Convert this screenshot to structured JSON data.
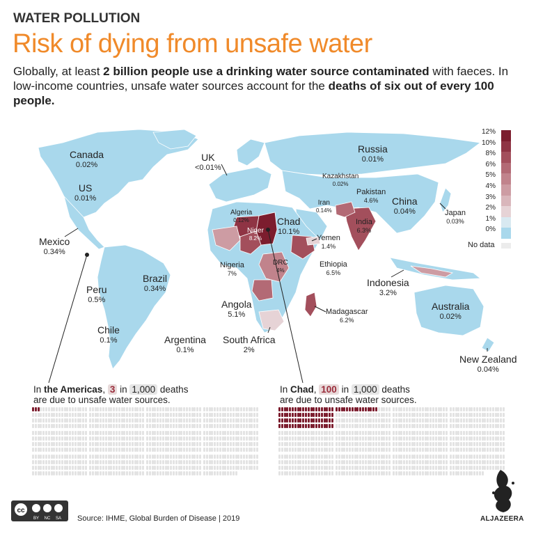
{
  "header": {
    "kicker": "WATER POLLUTION",
    "title": "Risk of dying from unsafe water",
    "subtitle_p1": "Globally, at least ",
    "subtitle_b1": "2 billion people use a drinking water source contaminated",
    "subtitle_p2": " with faeces. In low-income countries, unsafe water sources account for the ",
    "subtitle_b2": "deaths of six out of every 100 people."
  },
  "colors": {
    "ocean": "#ffffff",
    "base": "#a9d8ec",
    "title_orange": "#f08a2a",
    "dark_red": "#7c1d2e",
    "no_data": "#ececec"
  },
  "legend": {
    "ticks": [
      "12%",
      "10%",
      "8%",
      "6%",
      "5%",
      "4%",
      "3%",
      "2%",
      "1%",
      "0%"
    ],
    "swatches": [
      "#7c1d2e",
      "#8f3444",
      "#a34f5c",
      "#b36a75",
      "#c1838c",
      "#cd9ca3",
      "#d9b6bb",
      "#e6d3d6",
      "#d8e9f1",
      "#a9d8ec"
    ],
    "no_data_label": "No data"
  },
  "countries": [
    {
      "name": "Canada",
      "value": "0.02%"
    },
    {
      "name": "US",
      "value": "0.01%"
    },
    {
      "name": "Mexico",
      "value": "0.34%"
    },
    {
      "name": "Peru",
      "value": "0.5%"
    },
    {
      "name": "Brazil",
      "value": "0.34%"
    },
    {
      "name": "Chile",
      "value": "0.1%"
    },
    {
      "name": "Argentina",
      "value": "0.1%"
    },
    {
      "name": "UK",
      "value": "<0.01%"
    },
    {
      "name": "Russia",
      "value": "0.01%"
    },
    {
      "name": "Kazakhstan",
      "value": "0.02%"
    },
    {
      "name": "Algeria",
      "value": "0.12%"
    },
    {
      "name": "Chad",
      "value": "10.1%"
    },
    {
      "name": "Niger",
      "value": "8.2%"
    },
    {
      "name": "Iran",
      "value": "0.14%"
    },
    {
      "name": "Pakistan",
      "value": "4.6%"
    },
    {
      "name": "India",
      "value": "6.3%"
    },
    {
      "name": "China",
      "value": "0.04%"
    },
    {
      "name": "Japan",
      "value": "0.03%"
    },
    {
      "name": "Yemen",
      "value": "1.4%"
    },
    {
      "name": "Nigeria",
      "value": "7%"
    },
    {
      "name": "DRC",
      "value": "4%"
    },
    {
      "name": "Ethiopia",
      "value": "6.5%"
    },
    {
      "name": "Indonesia",
      "value": "3.2%"
    },
    {
      "name": "Angola",
      "value": "5.1%"
    },
    {
      "name": "Madagascar",
      "value": "6.2%"
    },
    {
      "name": "South Africa",
      "value": "2%"
    },
    {
      "name": "Australia",
      "value": "0.02%"
    },
    {
      "name": "New Zealand",
      "value": "0.04%"
    }
  ],
  "americas": {
    "pre": "In ",
    "region": "the Americas",
    "sep": ", ",
    "count": "3",
    "mid": " in ",
    "total": "1,000",
    "post": " deaths",
    "line2": "are due to unsafe water sources.",
    "deaths": 3,
    "out_of": 1000
  },
  "chad": {
    "pre": "In ",
    "region": "Chad",
    "sep": ", ",
    "count": "100",
    "mid": " in ",
    "total": "1,000",
    "post": " deaths",
    "line2": "are due to unsafe water sources.",
    "deaths": 100,
    "out_of": 1000
  },
  "footer": {
    "source": "Source: IHME, Global Burden of Disease | 2019",
    "license": [
      "cc",
      "BY",
      "NC",
      "SA"
    ],
    "brand": "ALJAZEERA"
  }
}
